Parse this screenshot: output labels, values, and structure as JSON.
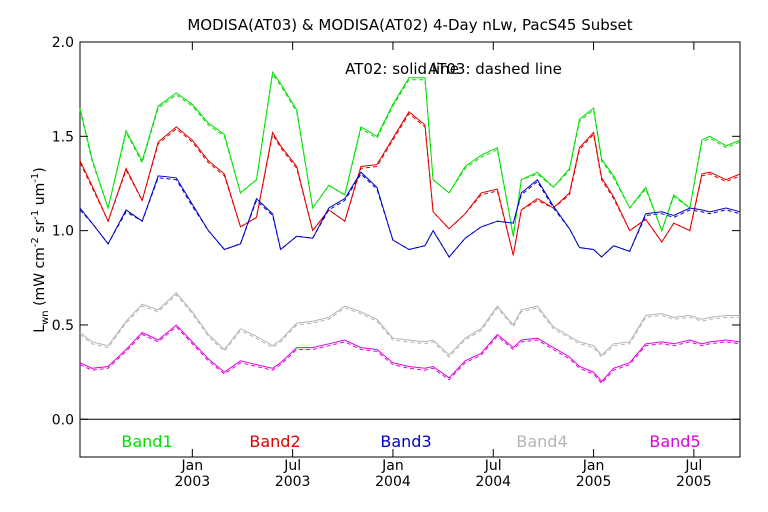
{
  "chart_data": {
    "type": "line",
    "title": "MODISA(AT03) & MODISA(AT02) 4-Day nLw, PacS45 Subset",
    "annotation_solid": "AT02: solid line",
    "annotation_dashed": "AT03: dashed line",
    "ylabel_main": "L",
    "ylabel_sub": "wn",
    "ylabel_rest": " (mW cm",
    "ylabel_exp1": "-2",
    "ylabel_mid": " sr",
    "ylabel_exp2": "-1",
    "ylabel_mid2": " um",
    "ylabel_exp3": "-1",
    "ylabel_end": ")",
    "ylim": [
      -0.2,
      2.0
    ],
    "xlim": [
      2002.44,
      2005.73
    ],
    "yticks": [
      {
        "value": 0.0,
        "label": "0.0"
      },
      {
        "value": 0.5,
        "label": "0.5"
      },
      {
        "value": 1.0,
        "label": "1.0"
      },
      {
        "value": 1.5,
        "label": "1.5"
      },
      {
        "value": 2.0,
        "label": "2.0"
      }
    ],
    "xticks": [
      {
        "value": 2003.0,
        "line1": "Jan",
        "line2": "2003"
      },
      {
        "value": 2003.5,
        "line1": "Jul",
        "line2": "2003"
      },
      {
        "value": 2004.0,
        "line1": "Jan",
        "line2": "2004"
      },
      {
        "value": 2004.5,
        "line1": "Jul",
        "line2": "2004"
      },
      {
        "value": 2005.0,
        "line1": "Jan",
        "line2": "2005"
      },
      {
        "value": 2005.5,
        "line1": "Jul",
        "line2": "2005"
      }
    ],
    "zero_line": 0.0,
    "x": [
      2002.44,
      2002.5,
      2002.58,
      2002.67,
      2002.75,
      2002.83,
      2002.92,
      2003.0,
      2003.08,
      2003.16,
      2003.24,
      2003.32,
      2003.4,
      2003.44,
      2003.52,
      2003.6,
      2003.68,
      2003.76,
      2003.84,
      2003.92,
      2004.0,
      2004.08,
      2004.16,
      2004.2,
      2004.28,
      2004.36,
      2004.44,
      2004.52,
      2004.6,
      2004.64,
      2004.72,
      2004.8,
      2004.88,
      2004.93,
      2005.0,
      2005.04,
      2005.1,
      2005.18,
      2005.26,
      2005.34,
      2005.4,
      2005.48,
      2005.54,
      2005.58,
      2005.66,
      2005.73
    ],
    "series": [
      {
        "name": "Band1",
        "color": "#00e000",
        "values": [
          1.65,
          1.38,
          1.12,
          1.53,
          1.37,
          1.66,
          1.73,
          1.67,
          1.57,
          1.51,
          1.2,
          1.27,
          1.84,
          1.78,
          1.64,
          1.12,
          1.24,
          1.19,
          1.55,
          1.5,
          1.67,
          1.81,
          1.81,
          1.27,
          1.2,
          1.34,
          1.4,
          1.44,
          0.97,
          1.27,
          1.31,
          1.23,
          1.33,
          1.59,
          1.65,
          1.38,
          1.29,
          1.12,
          1.23,
          1.0,
          1.19,
          1.12,
          1.48,
          1.5,
          1.45,
          1.48
        ]
      },
      {
        "name": "Band2",
        "color": "#e00000",
        "values": [
          1.37,
          1.24,
          1.05,
          1.33,
          1.16,
          1.47,
          1.55,
          1.48,
          1.37,
          1.3,
          1.02,
          1.07,
          1.52,
          1.45,
          1.34,
          1.0,
          1.11,
          1.05,
          1.34,
          1.35,
          1.49,
          1.63,
          1.56,
          1.1,
          1.01,
          1.09,
          1.2,
          1.22,
          0.87,
          1.11,
          1.17,
          1.12,
          1.2,
          1.44,
          1.52,
          1.28,
          1.18,
          1.0,
          1.06,
          0.94,
          1.04,
          1.0,
          1.3,
          1.31,
          1.27,
          1.3
        ]
      },
      {
        "name": "Band3",
        "color": "#0000c8",
        "values": [
          1.12,
          1.04,
          0.93,
          1.11,
          1.05,
          1.29,
          1.28,
          1.14,
          1.0,
          0.9,
          0.93,
          1.17,
          1.09,
          0.9,
          0.97,
          0.96,
          1.12,
          1.17,
          1.31,
          1.23,
          0.95,
          0.9,
          0.92,
          1.0,
          0.86,
          0.96,
          1.02,
          1.05,
          1.04,
          1.2,
          1.27,
          1.13,
          1.01,
          0.91,
          0.9,
          0.86,
          0.92,
          0.89,
          1.09,
          1.1,
          1.08,
          1.12,
          1.11,
          1.1,
          1.12,
          1.1
        ]
      },
      {
        "name": "Band4",
        "color": "#b4b4b4",
        "values": [
          0.46,
          0.41,
          0.39,
          0.52,
          0.61,
          0.58,
          0.67,
          0.57,
          0.45,
          0.37,
          0.48,
          0.44,
          0.39,
          0.42,
          0.51,
          0.52,
          0.54,
          0.6,
          0.57,
          0.53,
          0.43,
          0.42,
          0.41,
          0.42,
          0.34,
          0.43,
          0.48,
          0.6,
          0.5,
          0.58,
          0.6,
          0.49,
          0.44,
          0.41,
          0.39,
          0.34,
          0.4,
          0.41,
          0.55,
          0.56,
          0.54,
          0.55,
          0.53,
          0.54,
          0.55,
          0.55
        ]
      },
      {
        "name": "Band5",
        "color": "#e000e0",
        "values": [
          0.3,
          0.27,
          0.28,
          0.37,
          0.46,
          0.42,
          0.5,
          0.41,
          0.32,
          0.25,
          0.31,
          0.29,
          0.27,
          0.3,
          0.38,
          0.38,
          0.4,
          0.42,
          0.38,
          0.37,
          0.3,
          0.28,
          0.27,
          0.28,
          0.22,
          0.31,
          0.35,
          0.45,
          0.38,
          0.42,
          0.43,
          0.38,
          0.33,
          0.28,
          0.25,
          0.2,
          0.27,
          0.3,
          0.4,
          0.41,
          0.4,
          0.42,
          0.4,
          0.41,
          0.42,
          0.41
        ]
      }
    ],
    "dashed_series": [
      {
        "name": "Band1",
        "color": "#00e000",
        "values": [
          1.64,
          1.37,
          1.12,
          1.52,
          1.36,
          1.65,
          1.72,
          1.66,
          1.56,
          1.5,
          1.2,
          1.27,
          1.83,
          1.77,
          1.63,
          1.12,
          1.24,
          1.19,
          1.54,
          1.49,
          1.66,
          1.8,
          1.8,
          1.27,
          1.2,
          1.33,
          1.39,
          1.43,
          0.97,
          1.27,
          1.3,
          1.23,
          1.32,
          1.58,
          1.64,
          1.37,
          1.28,
          1.12,
          1.22,
          1.0,
          1.18,
          1.12,
          1.47,
          1.49,
          1.44,
          1.47
        ]
      },
      {
        "name": "Band2",
        "color": "#e00000",
        "values": [
          1.36,
          1.23,
          1.05,
          1.32,
          1.16,
          1.46,
          1.54,
          1.47,
          1.36,
          1.29,
          1.02,
          1.07,
          1.51,
          1.44,
          1.33,
          1.0,
          1.11,
          1.05,
          1.33,
          1.34,
          1.48,
          1.62,
          1.55,
          1.1,
          1.01,
          1.09,
          1.19,
          1.21,
          0.87,
          1.11,
          1.16,
          1.12,
          1.19,
          1.43,
          1.51,
          1.27,
          1.17,
          1.0,
          1.06,
          0.94,
          1.04,
          1.0,
          1.29,
          1.3,
          1.26,
          1.29
        ]
      },
      {
        "name": "Band3",
        "color": "#0000c8",
        "values": [
          1.11,
          1.04,
          0.93,
          1.1,
          1.05,
          1.28,
          1.27,
          1.13,
          1.0,
          0.9,
          0.93,
          1.16,
          1.08,
          0.9,
          0.97,
          0.96,
          1.11,
          1.16,
          1.3,
          1.22,
          0.95,
          0.9,
          0.92,
          1.0,
          0.86,
          0.96,
          1.02,
          1.05,
          1.04,
          1.19,
          1.26,
          1.12,
          1.01,
          0.91,
          0.9,
          0.86,
          0.92,
          0.89,
          1.08,
          1.09,
          1.07,
          1.11,
          1.1,
          1.09,
          1.11,
          1.09
        ]
      },
      {
        "name": "Band4",
        "color": "#b4b4b4",
        "values": [
          0.45,
          0.4,
          0.38,
          0.51,
          0.6,
          0.57,
          0.66,
          0.56,
          0.44,
          0.36,
          0.47,
          0.43,
          0.38,
          0.41,
          0.5,
          0.51,
          0.53,
          0.59,
          0.56,
          0.52,
          0.42,
          0.41,
          0.4,
          0.41,
          0.33,
          0.42,
          0.47,
          0.59,
          0.49,
          0.57,
          0.59,
          0.48,
          0.43,
          0.4,
          0.38,
          0.33,
          0.39,
          0.4,
          0.54,
          0.55,
          0.53,
          0.54,
          0.52,
          0.53,
          0.54,
          0.54
        ]
      },
      {
        "name": "Band5",
        "color": "#e000e0",
        "values": [
          0.29,
          0.26,
          0.27,
          0.36,
          0.45,
          0.41,
          0.49,
          0.4,
          0.31,
          0.24,
          0.3,
          0.28,
          0.26,
          0.29,
          0.37,
          0.37,
          0.39,
          0.41,
          0.37,
          0.36,
          0.29,
          0.27,
          0.26,
          0.27,
          0.21,
          0.3,
          0.34,
          0.44,
          0.37,
          0.41,
          0.42,
          0.37,
          0.32,
          0.27,
          0.24,
          0.19,
          0.26,
          0.29,
          0.39,
          0.4,
          0.39,
          0.41,
          0.39,
          0.4,
          0.41,
          0.4
        ]
      }
    ],
    "legend_placement": "bottom-inside",
    "grid": false
  }
}
